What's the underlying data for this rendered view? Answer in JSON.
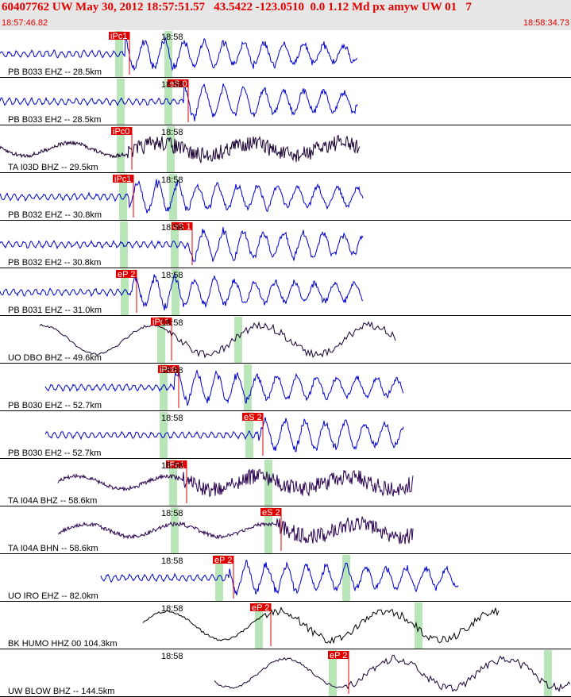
{
  "header": {
    "title": "60407762 UW May 30, 2012 18:57:51.57   43.5422 -123.0510  0.0 1.12 Md px amyw UW 01   7",
    "start_time": "18:57:46.82",
    "end_time": "18:58:34.73"
  },
  "time_mark": "18:58",
  "traces": [
    {
      "label": "PB B033 EHZ -- 28.5km",
      "pick": "iPc1",
      "color": "#0000cc"
    },
    {
      "label": "PB B033 EH2 -- 28.5km",
      "pick": "eS 0",
      "color": "#0000cc"
    },
    {
      "label": "TA I03D BHZ -- 29.5km",
      "pick": "iPc0",
      "color": "#1a0033"
    },
    {
      "label": "PB B032 EHZ -- 30.8km",
      "pick": "iPc1",
      "color": "#0000cc"
    },
    {
      "label": "PB B032 EH2 -- 30.8km",
      "pick": "eS 1",
      "color": "#0000cc"
    },
    {
      "label": "PB B031 EHZ -- 31.0km",
      "pick": "eP 2",
      "color": "#0000cc"
    },
    {
      "label": "UO DBO BHZ -- 49.6km",
      "pick": "iPc1",
      "color": "#1a0033"
    },
    {
      "label": "PB B030 EHZ -- 52.7km",
      "pick": "iPc0",
      "color": "#0000cc"
    },
    {
      "label": "PB B030 EH2 -- 52.7km",
      "pick": "eS 2",
      "color": "#0000cc"
    },
    {
      "label": "TA I04A BHZ -- 58.6km",
      "pick": "iPc1",
      "color": "#2a0050"
    },
    {
      "label": "TA I04A BHN -- 58.6km",
      "pick": "eS 2",
      "color": "#2a0050"
    },
    {
      "label": "UO IRO EHZ -- 82.0km",
      "pick": "eP 2",
      "color": "#0000cc"
    },
    {
      "label": "BK HUMO HHZ 00 104.3km",
      "pick": "eP 2",
      "color": "#000000"
    },
    {
      "label": "UW BLOW BHZ -- 144.5km",
      "pick": "eP 2",
      "color": "#1a0033"
    }
  ]
}
